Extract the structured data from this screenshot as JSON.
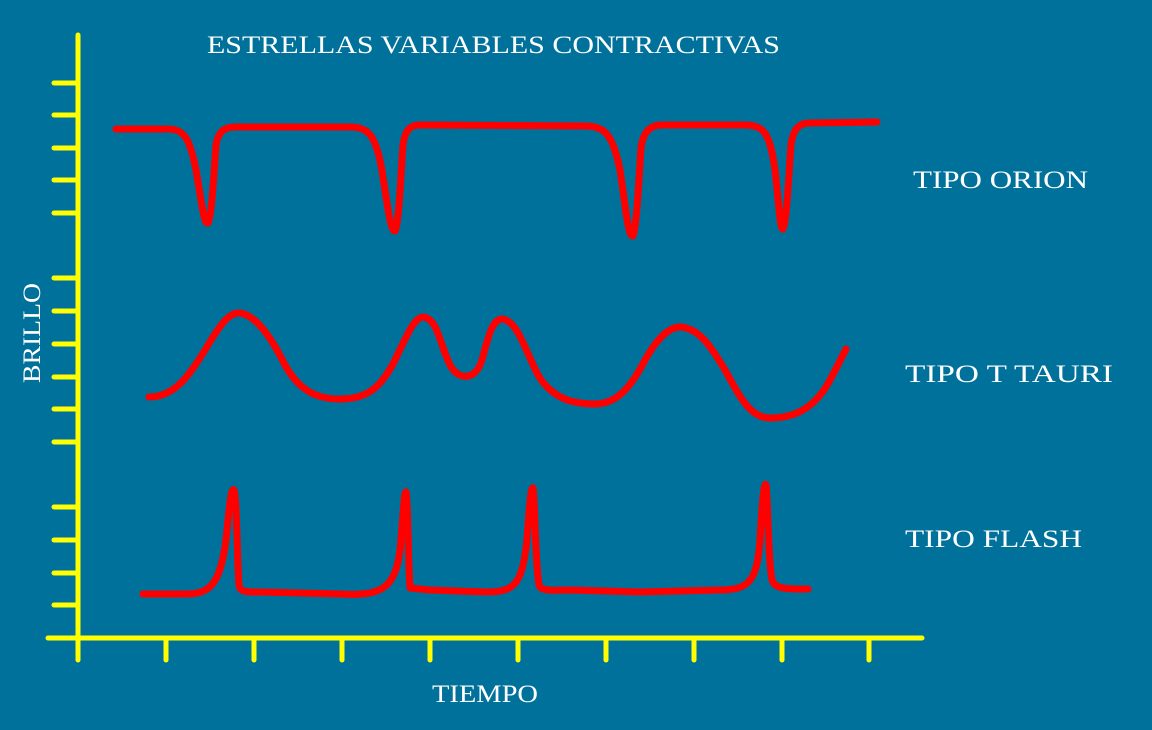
{
  "title": "ESTRELLAS VARIABLES CONTRACTIVAS",
  "y_axis_label": "BRILLO",
  "x_axis_label": "TIEMPO",
  "colors": {
    "background": "#00719a",
    "axes": "#ffff00",
    "curves": "#ff0000",
    "text": "#ffffff"
  },
  "curves": [
    {
      "label": "TIPO ORION",
      "shape": "constant brightness with sharp dips"
    },
    {
      "label": "TIPO T TAURI",
      "shape": "irregular smooth oscillations"
    },
    {
      "label": "TIPO FLASH",
      "shape": "constant low brightness with sharp spikes"
    }
  ]
}
